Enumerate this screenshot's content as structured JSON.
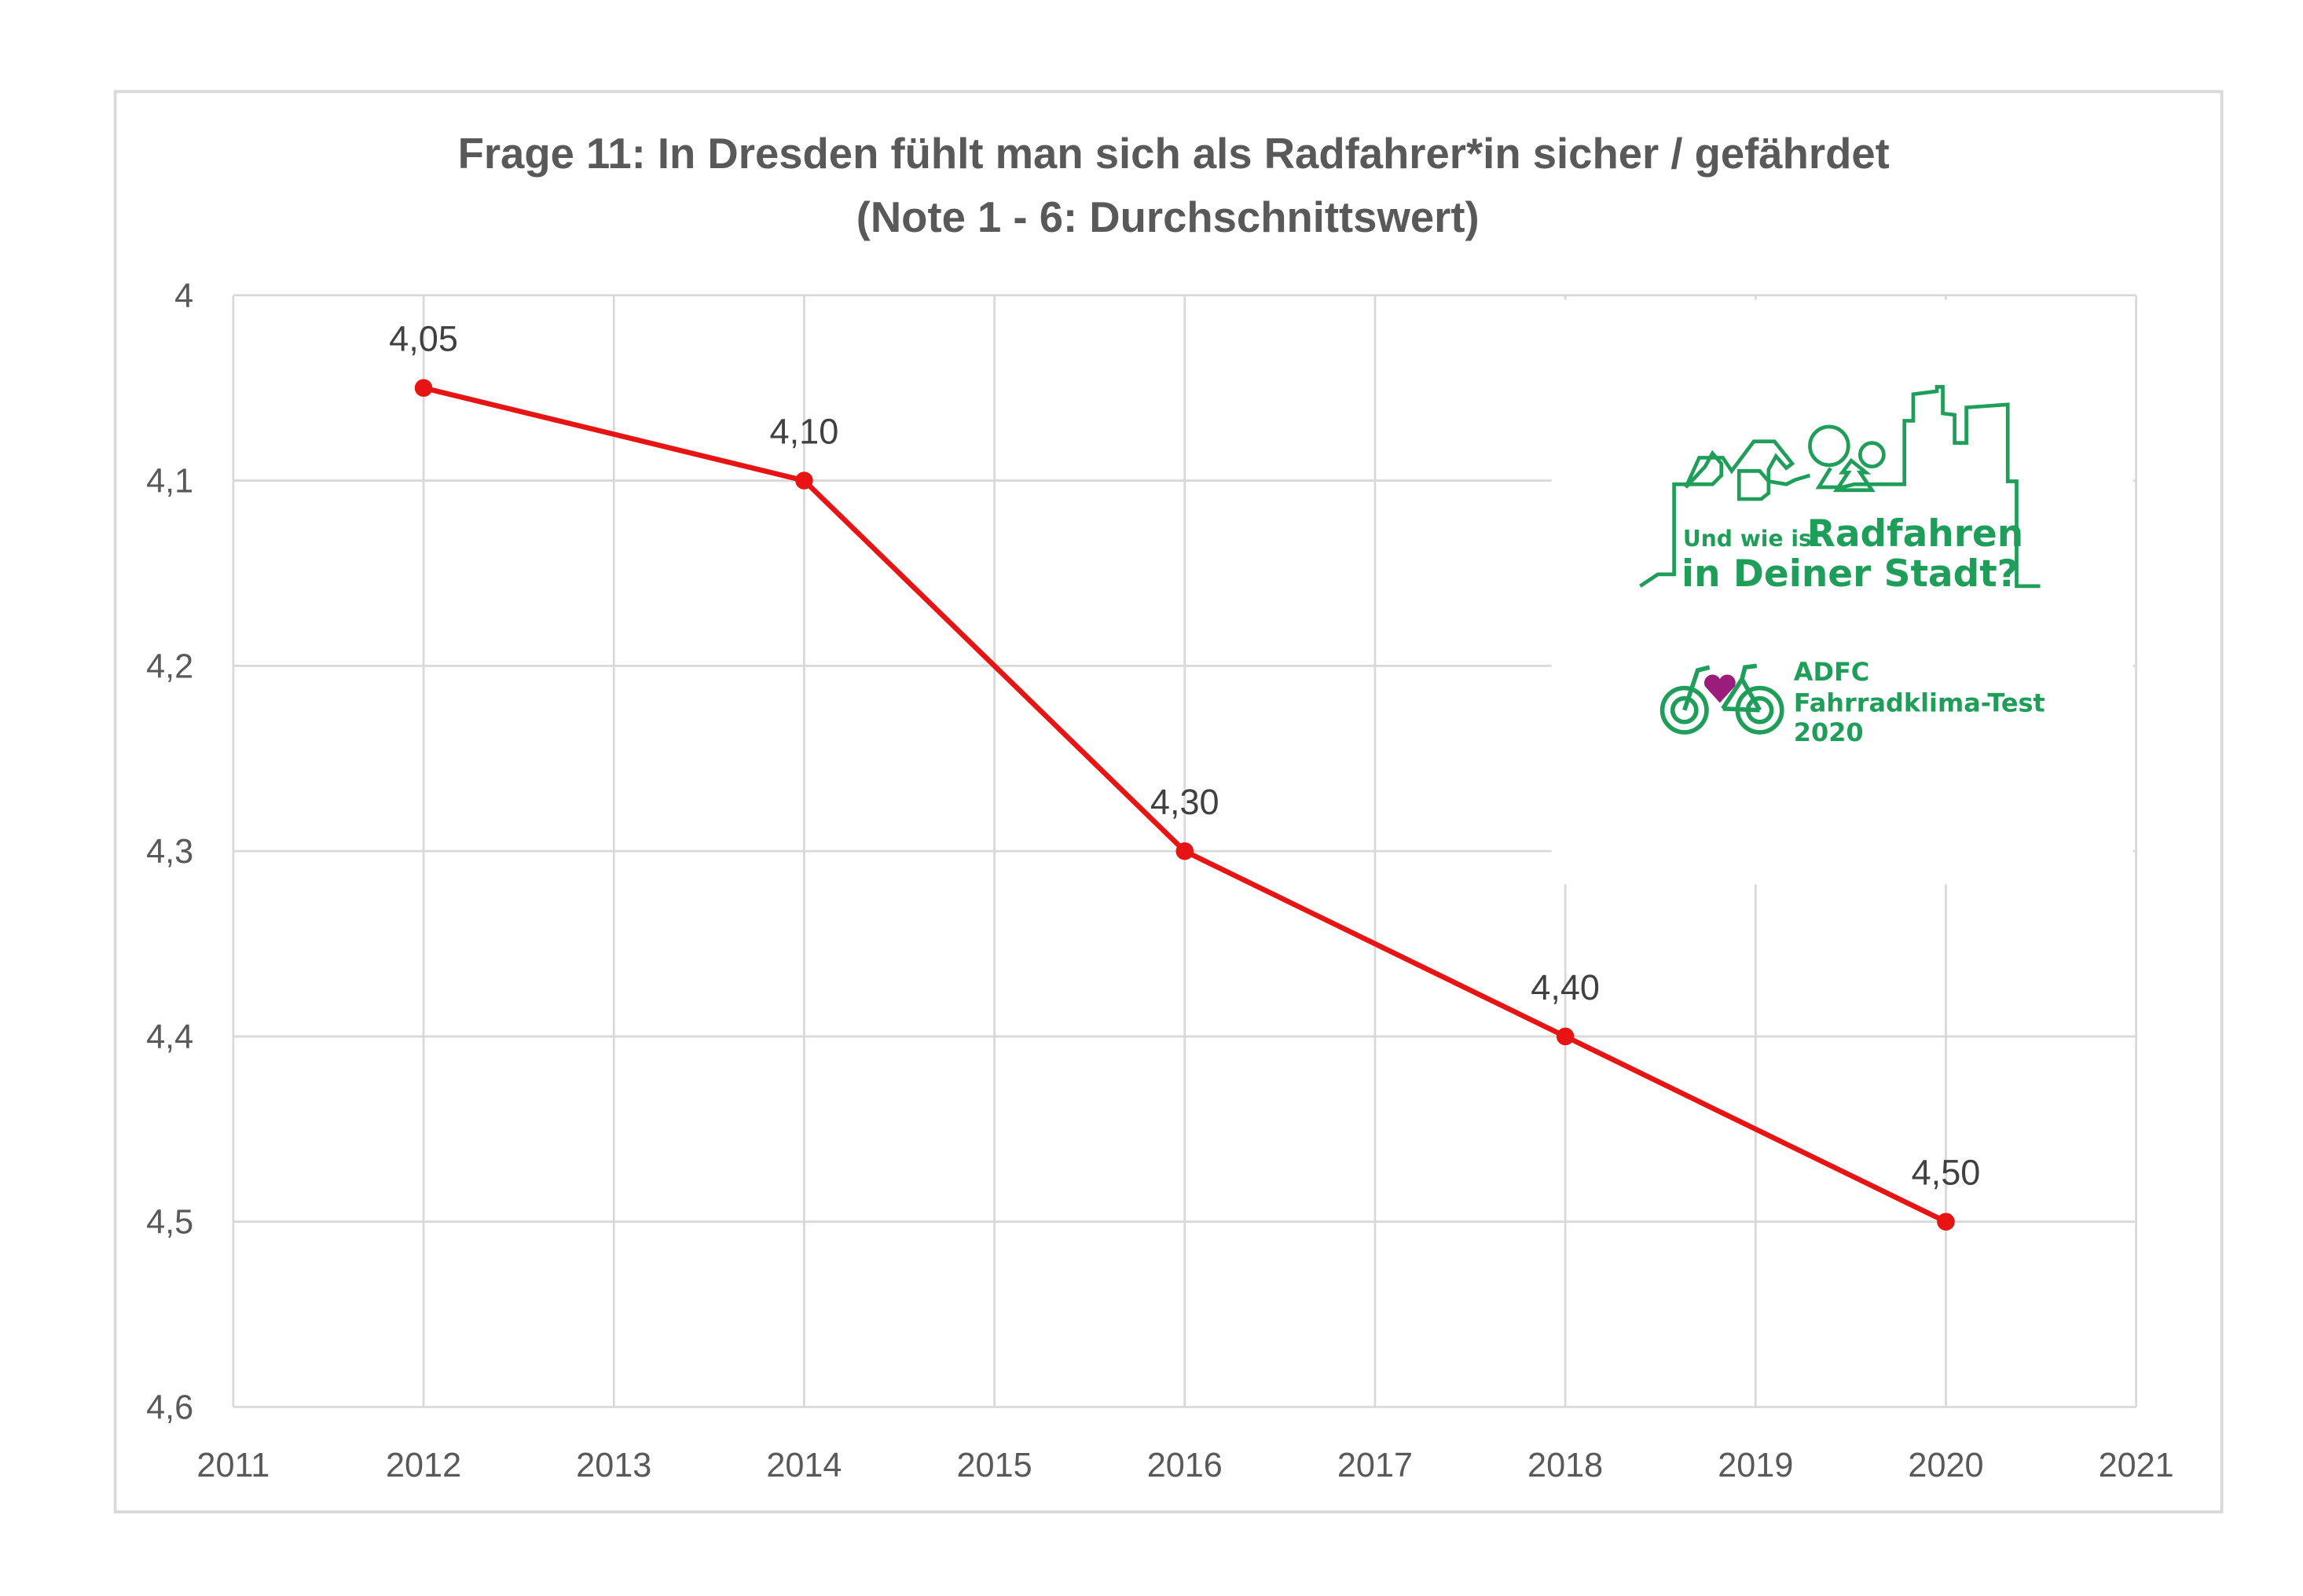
{
  "chart_data": {
    "type": "line",
    "title": "Frage 11: In Dresden fühlt man sich als Radfahrer*in sicher / gefährdet",
    "subtitle": "(Note 1 - 6: Durchschnittswert)",
    "xlabel": "",
    "ylabel": "",
    "xlim": [
      2011,
      2021
    ],
    "ylim": [
      4,
      4.6
    ],
    "y_inverted": true,
    "x_ticks": [
      2011,
      2012,
      2013,
      2014,
      2015,
      2016,
      2017,
      2018,
      2019,
      2020,
      2021
    ],
    "y_ticks": [
      "4",
      "4,1",
      "4,2",
      "4,3",
      "4,4",
      "4,5",
      "4,6"
    ],
    "y_tick_values": [
      4,
      4.1,
      4.2,
      4.3,
      4.4,
      4.5,
      4.6
    ],
    "grid": true,
    "legend": "none",
    "series": [
      {
        "x": [
          2012,
          2014,
          2016,
          2018,
          2020
        ],
        "y": [
          4.05,
          4.1,
          4.3,
          4.4,
          4.5
        ],
        "labels": [
          "4,05",
          "4,10",
          "4,30",
          "4,40",
          "4,50"
        ],
        "color": "#e81414"
      }
    ]
  },
  "logo": {
    "line1_small": "Und wie ist",
    "line1_big": "Radfahren",
    "line2": "in Deiner Stadt?",
    "brand": "ADFC",
    "brand_sub": "Fahrradklima-Test",
    "year": "2020",
    "color": "#1f9e5a",
    "heart_color": "#9c1c7c"
  }
}
